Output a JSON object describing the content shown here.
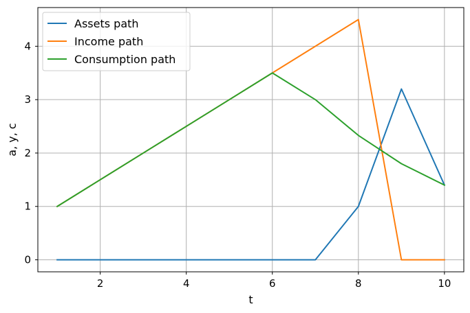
{
  "chart_data": {
    "type": "line",
    "title": "",
    "xlabel": "t",
    "ylabel": "a, y, c",
    "xlim": [
      0.55,
      10.45
    ],
    "ylim": [
      -0.225,
      4.725
    ],
    "xticks": [
      2,
      4,
      6,
      8,
      10
    ],
    "yticks": [
      0,
      1,
      2,
      3,
      4
    ],
    "grid": true,
    "legend": "top-left",
    "x": [
      1,
      2,
      3,
      4,
      5,
      6,
      7,
      8,
      9,
      10
    ],
    "series": [
      {
        "name": "Assets path",
        "color": "#1f77b4",
        "values": [
          0,
          0,
          0,
          0,
          0,
          0,
          0,
          1.0,
          3.2,
          1.4
        ]
      },
      {
        "name": "Income path",
        "color": "#ff7f0e",
        "values": [
          1.0,
          1.5,
          2.0,
          2.5,
          3.0,
          3.5,
          4.0,
          4.5,
          0,
          0
        ]
      },
      {
        "name": "Consumption path",
        "color": "#2ca02c",
        "values": [
          1.0,
          1.5,
          2.0,
          2.5,
          3.0,
          3.5,
          3.0,
          2.33,
          1.8,
          1.4
        ]
      }
    ]
  }
}
